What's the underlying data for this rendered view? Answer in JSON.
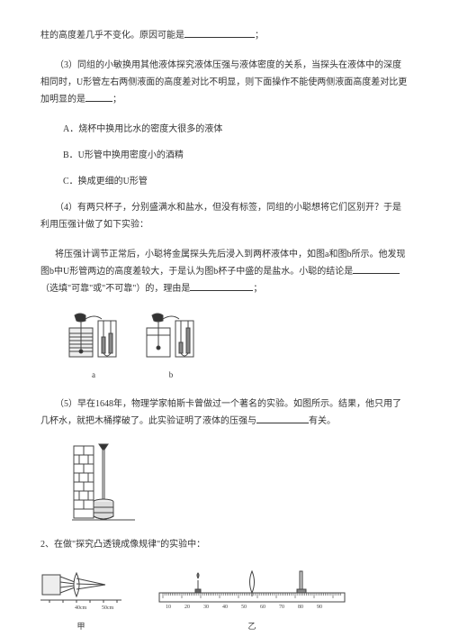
{
  "p1": "柱的高度差几乎不变化。原因可能是",
  "p1_tail": "；",
  "p2_a": "（3）同组的小敏换用其他液体探究液体压强与液体密度的关系，当探头在液体中的深度相同时，U形管左右两侧液面的高度差对比不明显，则下面操作不能使两侧液面高度差对比更加明显的是",
  "p2_tail": "；",
  "optA": "A．烧杯中换用比水的密度大很多的液体",
  "optB": "B．U形管中换用密度小的酒精",
  "optC": "C．换成更细的U形管",
  "p4_a": "（4）有两只杯子，分别盛满水和盐水，但没有标签，同组的小聪想将它们区别开？于是利用压强计做了如下实验：",
  "p5_a": "将压强计调节正常后，小聪将金属探头先后浸入到两杯液体中，如图a和图b所示。他发现图b中U形管两边的高度差较大，于是认为图b杯子中盛的是盐水。小聪的结论是",
  "p5_b": "（选填\"可靠\"或\"不可靠\"）的，理由是",
  "p5_tail": "；",
  "labelA": "a",
  "labelB": "b",
  "p6_a": "（5）早在1648年，物理学家帕斯卡曾做过一个著名的实验。如图所示。结果，他只用了几杯水，就把木桶撑破了。此实验证明了液体的压强与",
  "p6_tail": "有关。",
  "q2": "2、在做\"探究凸透镜成像规律\"的实验中：",
  "capJia": "甲",
  "capYi": "乙",
  "ruler": {
    "marks": [
      "10",
      "20",
      "30",
      "40",
      "50",
      "60",
      "70",
      "80",
      "90"
    ]
  },
  "colors": {
    "line": "#444444",
    "fill_light": "#dddddd",
    "fill_dark": "#888888"
  }
}
